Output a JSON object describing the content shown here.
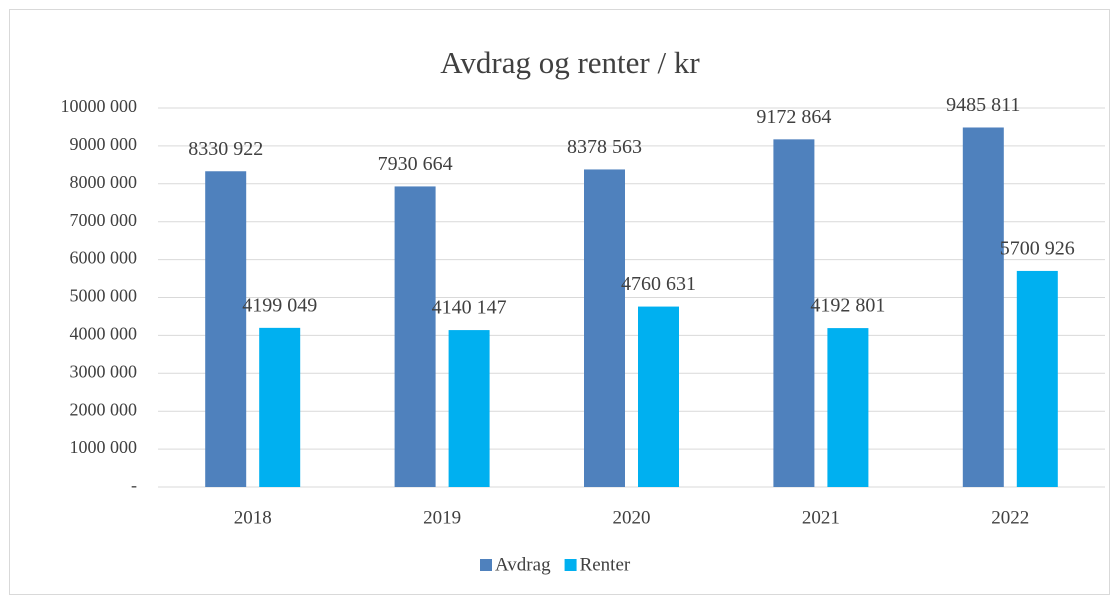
{
  "chart_data": {
    "type": "bar",
    "title": "Avdrag og renter / kr",
    "categories": [
      "2018",
      "2019",
      "2020",
      "2021",
      "2022"
    ],
    "series": [
      {
        "name": "Avdrag",
        "color": "#4f81bd",
        "values": [
          8330922,
          7930664,
          8378563,
          9172864,
          9485811
        ],
        "value_labels": [
          "8330 922",
          "7930 664",
          "8378 563",
          "9172 864",
          "9485 811"
        ]
      },
      {
        "name": "Renter",
        "color": "#00b0f0",
        "values": [
          4199049,
          4140147,
          4760631,
          4192801,
          5700926
        ],
        "value_labels": [
          "4199 049",
          "4140 147",
          "4760 631",
          "4192 801",
          "5700 926"
        ]
      }
    ],
    "ylim": [
      0,
      10000000
    ],
    "yticks": [
      {
        "value": 0,
        "label": "-"
      },
      {
        "value": 1000000,
        "label": "1000 000"
      },
      {
        "value": 2000000,
        "label": "2000 000"
      },
      {
        "value": 3000000,
        "label": "3000 000"
      },
      {
        "value": 4000000,
        "label": "4000 000"
      },
      {
        "value": 5000000,
        "label": "5000 000"
      },
      {
        "value": 6000000,
        "label": "6000 000"
      },
      {
        "value": 7000000,
        "label": "7000 000"
      },
      {
        "value": 8000000,
        "label": "8000 000"
      },
      {
        "value": 9000000,
        "label": "9000 000"
      },
      {
        "value": 10000000,
        "label": "10000 000"
      }
    ],
    "grid": true,
    "legend": "bottom"
  }
}
